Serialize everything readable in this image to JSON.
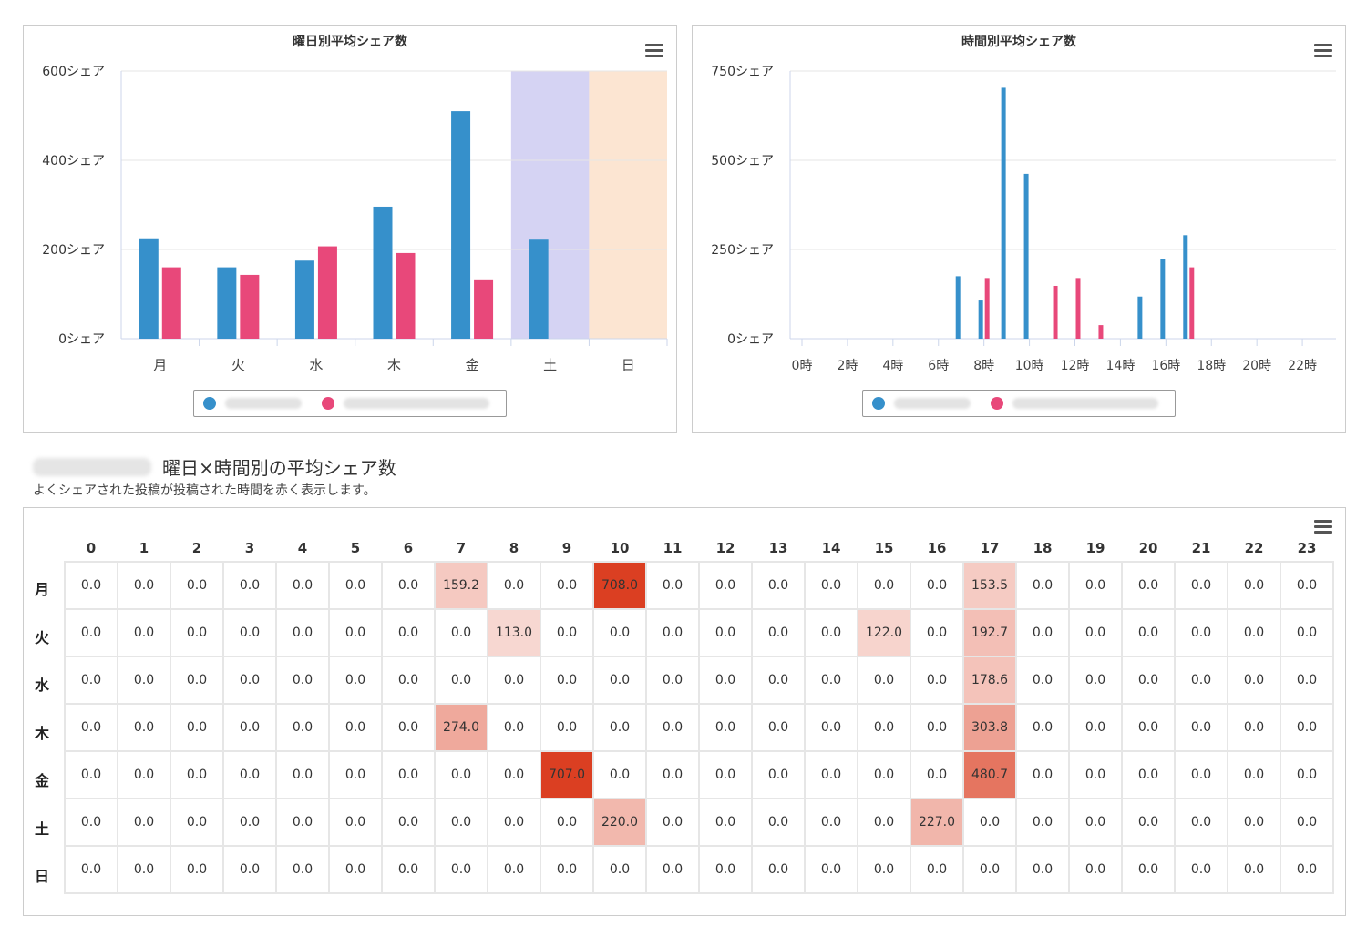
{
  "charts": {
    "weekday": {
      "title": "曜日別平均シェア数",
      "y_ticks": [
        "0シェア",
        "200シェア",
        "400シェア",
        "600シェア"
      ],
      "x_ticks": [
        "月",
        "火",
        "水",
        "木",
        "金",
        "土",
        "日"
      ]
    },
    "hourly": {
      "title": "時間別平均シェア数",
      "y_ticks": [
        "0シェア",
        "250シェア",
        "500シェア",
        "750シェア"
      ],
      "x_ticks": [
        "0時",
        "2時",
        "4時",
        "6時",
        "8時",
        "10時",
        "12時",
        "14時",
        "16時",
        "18時",
        "20時",
        "22時"
      ]
    }
  },
  "heatmap": {
    "title": "曜日×時間別の平均シェア数",
    "subtitle": "よくシェアされた投稿が投稿された時間を赤く表示します。"
  },
  "colors": {
    "series_a": "#3690cb",
    "series_b": "#e8487a",
    "saturday_band": "#d5d3f3",
    "sunday_band": "#fce5d2",
    "heat_max": "#db3f22"
  },
  "chart_data": [
    {
      "type": "bar",
      "title": "曜日別平均シェア数",
      "categories": [
        "月",
        "火",
        "水",
        "木",
        "金",
        "土",
        "日"
      ],
      "series": [
        {
          "values": [
            225,
            160,
            175,
            296,
            510,
            222,
            0
          ],
          "color": "#3690cb"
        },
        {
          "values": [
            160,
            143,
            207,
            192,
            133,
            0,
            0
          ],
          "color": "#e8487a"
        }
      ],
      "ylim": [
        0,
        600
      ],
      "y_tick_values": [
        0,
        200,
        400,
        600
      ],
      "highlight_bands": [
        {
          "category": "土",
          "color": "#d5d3f3"
        },
        {
          "category": "日",
          "color": "#fce5d2"
        }
      ],
      "grid": true,
      "legend": "bottom-center"
    },
    {
      "type": "bar",
      "title": "時間別平均シェア数",
      "categories": [
        "0時",
        "1時",
        "2時",
        "3時",
        "4時",
        "5時",
        "6時",
        "7時",
        "8時",
        "9時",
        "10時",
        "11時",
        "12時",
        "13時",
        "14時",
        "15時",
        "16時",
        "17時",
        "18時",
        "19時",
        "20時",
        "21時",
        "22時",
        "23時"
      ],
      "series": [
        {
          "values": [
            0,
            0,
            0,
            0,
            0,
            0,
            0,
            175,
            107,
            703,
            462,
            0,
            0,
            0,
            0,
            118,
            222,
            290,
            0,
            0,
            0,
            0,
            0,
            0
          ],
          "color": "#3690cb"
        },
        {
          "values": [
            0,
            0,
            0,
            0,
            0,
            0,
            0,
            0,
            170,
            0,
            0,
            148,
            170,
            38,
            0,
            0,
            0,
            200,
            0,
            0,
            0,
            0,
            0,
            0
          ],
          "color": "#e8487a"
        }
      ],
      "ylim": [
        0,
        750
      ],
      "y_tick_values": [
        0,
        250,
        500,
        750
      ],
      "grid": true,
      "legend": "bottom-center"
    },
    {
      "type": "heatmap",
      "title": "曜日×時間別の平均シェア数",
      "x": [
        "0",
        "1",
        "2",
        "3",
        "4",
        "5",
        "6",
        "7",
        "8",
        "9",
        "10",
        "11",
        "12",
        "13",
        "14",
        "15",
        "16",
        "17",
        "18",
        "19",
        "20",
        "21",
        "22",
        "23"
      ],
      "y": [
        "月",
        "火",
        "水",
        "木",
        "金",
        "土",
        "日"
      ],
      "values": [
        [
          0,
          0,
          0,
          0,
          0,
          0,
          0,
          159.2,
          0,
          0,
          708.0,
          0,
          0,
          0,
          0,
          0,
          0,
          153.5,
          0,
          0,
          0,
          0,
          0,
          0
        ],
        [
          0,
          0,
          0,
          0,
          0,
          0,
          0,
          0,
          113.0,
          0,
          0,
          0,
          0,
          0,
          0,
          122.0,
          0,
          192.7,
          0,
          0,
          0,
          0,
          0,
          0
        ],
        [
          0,
          0,
          0,
          0,
          0,
          0,
          0,
          0,
          0,
          0,
          0,
          0,
          0,
          0,
          0,
          0,
          0,
          178.6,
          0,
          0,
          0,
          0,
          0,
          0
        ],
        [
          0,
          0,
          0,
          0,
          0,
          0,
          0,
          274.0,
          0,
          0,
          0,
          0,
          0,
          0,
          0,
          0,
          0,
          303.8,
          0,
          0,
          0,
          0,
          0,
          0
        ],
        [
          0,
          0,
          0,
          0,
          0,
          0,
          0,
          0,
          0,
          707.0,
          0,
          0,
          0,
          0,
          0,
          0,
          0,
          480.7,
          0,
          0,
          0,
          0,
          0,
          0
        ],
        [
          0,
          0,
          0,
          0,
          0,
          0,
          0,
          0,
          0,
          0,
          220.0,
          0,
          0,
          0,
          0,
          0,
          227.0,
          0,
          0,
          0,
          0,
          0,
          0,
          0
        ],
        [
          0,
          0,
          0,
          0,
          0,
          0,
          0,
          0,
          0,
          0,
          0,
          0,
          0,
          0,
          0,
          0,
          0,
          0,
          0,
          0,
          0,
          0,
          0,
          0
        ]
      ]
    }
  ]
}
